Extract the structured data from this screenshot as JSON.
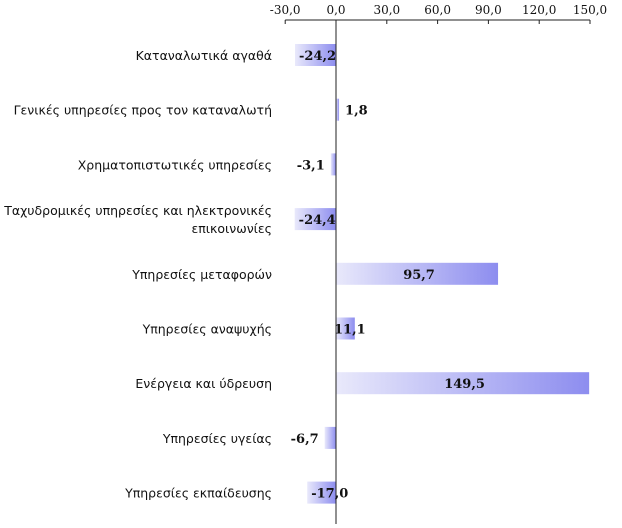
{
  "chart_data": {
    "type": "bar",
    "orientation": "horizontal",
    "categories": [
      "Καταναλωτικά αγαθά",
      "Γενικές υπηρεσίες προς τον καταναλωτή",
      "Χρηματοπιστωτικές υπηρεσίες",
      "Ταχυδρομικές υπηρεσίες και ηλεκτρονικές επικοινωνίες",
      "Υπηρεσίες μεταφορών",
      "Υπηρεσίες αναψυχής",
      "Ενέργεια και ύδρευση",
      "Υπηρεσίες υγείας",
      "Υπηρεσίες εκπαίδευσης"
    ],
    "category_lines": [
      [
        "Καταναλωτικά αγαθά"
      ],
      [
        "Γενικές υπηρεσίες προς τον καταναλωτή"
      ],
      [
        "Χρηματοπιστωτικές υπηρεσίες"
      ],
      [
        "Ταχυδρομικές υπηρεσίες και ηλεκτρονικές",
        "επικοινωνίες"
      ],
      [
        "Υπηρεσίες μεταφορών"
      ],
      [
        "Υπηρεσίες αναψυχής"
      ],
      [
        "Ενέργεια και ύδρευση"
      ],
      [
        "Υπηρεσίες υγείας"
      ],
      [
        "Υπηρεσίες εκπαίδευσης"
      ]
    ],
    "values": [
      -24.2,
      1.8,
      -3.1,
      -24.4,
      95.7,
      11.1,
      149.5,
      -6.7,
      -17.0
    ],
    "value_labels": [
      "-24,2",
      "1,8",
      "-3,1",
      "-24,4",
      "95,7",
      "11,1",
      "149,5",
      "-6,7",
      "-17,0"
    ],
    "xlim": [
      -30,
      150
    ],
    "ticks": [
      -30,
      0,
      30,
      60,
      90,
      120,
      150
    ],
    "tick_labels": [
      "-30,0",
      "0,0",
      "30,0",
      "60,0",
      "90,0",
      "120,0",
      "150,0"
    ],
    "axis_position": "top",
    "grid": false,
    "legend": "none",
    "title": "",
    "xlabel": "",
    "ylabel": "",
    "colors": {
      "bar_light": "#e9e9fb",
      "bar_dark": "#8d8def",
      "axis": "#222222"
    }
  }
}
